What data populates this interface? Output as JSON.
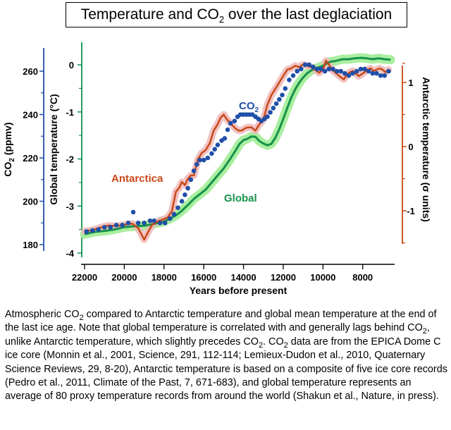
{
  "title": {
    "prefix": "Temperature and CO",
    "sub": "2",
    "suffix": " over the last deglaciation"
  },
  "colors": {
    "co2": "#1f4fa8",
    "antarctic": "#c84818",
    "antarctic_band": "#efb8b8",
    "global": "#15924a",
    "global_band": "#aaeea0",
    "axis_co2": "#1f4fa8",
    "axis_global": "#15924a",
    "axis_antarctic": "#c84818"
  },
  "caption": [
    {
      "t": "Atmospheric CO"
    },
    {
      "s": "2"
    },
    {
      "t": " compared to Antarctic temperature and global mean temperature at the end of the last ice age. Note that global temperature is correlated with and generally lags behind CO"
    },
    {
      "s": "2"
    },
    {
      "t": ", unlike Antarctic temperature, which slightly precedes CO"
    },
    {
      "s": "2"
    },
    {
      "t": ". CO"
    },
    {
      "s": "2"
    },
    {
      "t": " data are from the EPICA Dome C ice core (Monnin et al., 2001, Science, 291, 112-114; Lemieux-Dudon et al., 2010, Quaternary Science Reviews, 29, 8-20), Antarctic temperature is based on a composite of five ice core records (Pedro et al., 2011, Climate of the Past, 7, 671-683), and global temperature represents an average of 80 proxy temperature records from around the world (Shakun et al., Nature, in press)."
    }
  ],
  "chart_data": {
    "type": "line",
    "title": "Temperature and CO2 over the last deglaciation",
    "xlabel": "Years before present",
    "xlim": [
      22000,
      6500
    ],
    "x_ticks": [
      22000,
      20000,
      18000,
      16000,
      14000,
      12000,
      10000,
      8000
    ],
    "axes": {
      "co2": {
        "label": "CO2 (ppmv)",
        "lim": [
          180,
          267
        ],
        "ticks": [
          180,
          200,
          220,
          240,
          260
        ]
      },
      "global": {
        "label": "Global temperature (°C)",
        "lim": [
          -4,
          0.3
        ],
        "ticks": [
          0,
          -1,
          -2,
          -3,
          -4
        ]
      },
      "antarctic": {
        "label": "Antarctic temperature (σ units)",
        "lim": [
          -1.5,
          1.32
        ],
        "ticks": [
          1,
          0,
          -1
        ]
      }
    },
    "annotations": [
      {
        "text": "CO2",
        "series": "co2"
      },
      {
        "text": "Antarctica",
        "series": "antarctic"
      },
      {
        "text": "Global",
        "series": "global"
      }
    ],
    "series": [
      {
        "name": "CO2",
        "kind": "scatter",
        "axis": "co2",
        "x": [
          21900,
          21600,
          21300,
          21000,
          20700,
          20400,
          20100,
          19800,
          19550,
          19300,
          19000,
          18700,
          18500,
          18200,
          17950,
          17700,
          17500,
          17300,
          17100,
          16950,
          16800,
          16650,
          16500,
          16350,
          16200,
          16000,
          15800,
          15600,
          15450,
          15300,
          15100,
          14950,
          14800,
          14650,
          14450,
          14300,
          14150,
          14000,
          13850,
          13700,
          13550,
          13400,
          13250,
          13100,
          12950,
          12800,
          12650,
          12500,
          12350,
          12200,
          12050,
          11900,
          11700,
          11500,
          11300,
          11100,
          10900,
          10700,
          10500,
          10300,
          10100,
          9900,
          9700,
          9500,
          9300,
          9100,
          8900,
          8700,
          8500,
          8300,
          8100,
          7900,
          7700,
          7500,
          7300,
          7100,
          6900,
          6700
        ],
        "y": [
          186,
          186.5,
          187,
          188,
          188,
          189,
          189,
          190,
          195,
          190,
          190,
          191,
          191,
          190,
          190,
          192,
          194,
          197,
          200,
          203,
          206,
          210,
          214,
          217,
          219,
          219,
          220,
          222,
          224,
          226,
          228,
          229,
          233,
          236,
          237,
          239,
          240,
          240,
          240,
          240,
          240,
          239,
          238,
          237,
          238,
          239,
          241,
          243,
          245,
          247,
          249,
          252,
          256,
          258,
          260,
          261,
          263,
          263,
          262,
          261,
          261,
          260,
          261,
          261,
          260,
          260,
          259,
          258,
          259,
          260,
          261,
          261,
          260,
          259,
          259,
          258,
          258,
          260
        ]
      },
      {
        "name": "Antarctic temperature",
        "kind": "line",
        "axis": "antarctic",
        "x": [
          22000,
          21600,
          21200,
          20800,
          20400,
          20000,
          19600,
          19300,
          19000,
          18800,
          18600,
          18400,
          18200,
          18000,
          17800,
          17600,
          17400,
          17250,
          17100,
          16950,
          16800,
          16650,
          16500,
          16300,
          16100,
          15900,
          15700,
          15500,
          15300,
          15150,
          15000,
          14850,
          14700,
          14550,
          14400,
          14250,
          14100,
          13950,
          13800,
          13600,
          13400,
          13200,
          13000,
          12800,
          12600,
          12400,
          12200,
          12000,
          11800,
          11600,
          11400,
          11200,
          11000,
          10800,
          10600,
          10400,
          10200,
          10000,
          9850,
          9700,
          9550,
          9400,
          9250,
          9100,
          8950,
          8800,
          8650,
          8500,
          8350,
          8200,
          8050,
          7900,
          7750,
          7600,
          7450,
          7300,
          7150,
          7000,
          6850,
          6700
        ],
        "y": [
          -1.32,
          -1.3,
          -1.26,
          -1.23,
          -1.24,
          -1.22,
          -1.2,
          -1.27,
          -1.45,
          -1.33,
          -1.22,
          -1.18,
          -1.15,
          -1.13,
          -1.1,
          -1.0,
          -0.7,
          -0.65,
          -0.55,
          -0.6,
          -0.5,
          -0.45,
          -0.45,
          -0.2,
          -0.1,
          -0.05,
          0.05,
          0.25,
          0.35,
          0.45,
          0.5,
          0.43,
          0.38,
          0.33,
          0.28,
          0.25,
          0.25,
          0.28,
          0.3,
          0.3,
          0.25,
          0.35,
          0.42,
          0.65,
          0.8,
          0.9,
          1.0,
          1.1,
          1.2,
          1.22,
          1.26,
          1.24,
          1.28,
          1.26,
          1.24,
          1.2,
          1.15,
          1.2,
          1.34,
          1.28,
          1.2,
          1.16,
          1.12,
          1.08,
          1.05,
          1.12,
          1.16,
          1.18,
          1.14,
          1.1,
          1.13,
          1.16,
          1.2,
          1.22,
          1.18,
          1.2,
          1.22,
          1.2,
          1.16,
          1.2
        ]
      },
      {
        "name": "Global temperature",
        "kind": "line",
        "axis": "global",
        "x": [
          22000,
          21500,
          21000,
          20500,
          20000,
          19500,
          19000,
          18500,
          18000,
          17700,
          17400,
          17100,
          16800,
          16500,
          16200,
          15900,
          15600,
          15300,
          15000,
          14700,
          14400,
          14200,
          14000,
          13800,
          13600,
          13400,
          13200,
          13000,
          12800,
          12600,
          12400,
          12200,
          12000,
          11800,
          11600,
          11400,
          11200,
          11000,
          10800,
          10600,
          10400,
          10200,
          10000,
          9800,
          9600,
          9400,
          9200,
          9000,
          8700,
          8400,
          8100,
          7800,
          7500,
          7200,
          6900,
          6600
        ],
        "y": [
          -3.6,
          -3.55,
          -3.53,
          -3.5,
          -3.45,
          -3.43,
          -3.42,
          -3.38,
          -3.33,
          -3.27,
          -3.2,
          -3.1,
          -2.98,
          -2.85,
          -2.75,
          -2.65,
          -2.5,
          -2.35,
          -2.2,
          -2.02,
          -1.82,
          -1.68,
          -1.6,
          -1.57,
          -1.52,
          -1.53,
          -1.62,
          -1.67,
          -1.71,
          -1.68,
          -1.55,
          -1.37,
          -1.15,
          -0.92,
          -0.7,
          -0.52,
          -0.38,
          -0.27,
          -0.18,
          -0.12,
          -0.08,
          -0.05,
          -0.02,
          0.03,
          0.07,
          0.08,
          0.1,
          0.12,
          0.12,
          0.14,
          0.15,
          0.14,
          0.12,
          0.14,
          0.12,
          0.11
        ]
      }
    ]
  }
}
